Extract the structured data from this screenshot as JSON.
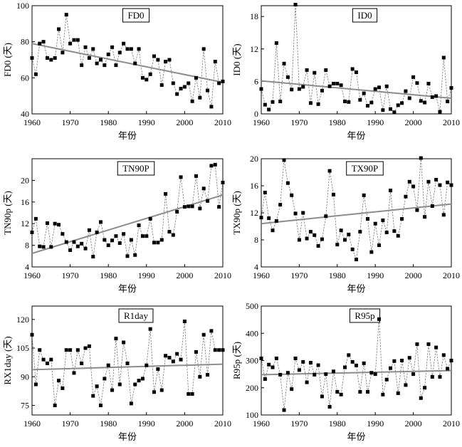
{
  "colors": {
    "series": "#7a7a7a",
    "trend": "#8c8c8c",
    "marker": "#000000",
    "axis": "#000000"
  },
  "chart_data": [
    {
      "type": "line",
      "title": "FD0",
      "ylabel": "FD0 (天)",
      "xlabel": "年份",
      "xlim": [
        1960,
        2010
      ],
      "xticks": [
        "1960",
        "1970",
        "1980",
        "1990",
        "2000",
        "2010"
      ],
      "ylim": [
        40,
        100
      ],
      "yticks": [
        "40",
        "60",
        "80",
        "100"
      ],
      "x": [
        1960,
        1961,
        1962,
        1963,
        1964,
        1965,
        1966,
        1967,
        1968,
        1969,
        1970,
        1971,
        1972,
        1973,
        1974,
        1975,
        1976,
        1977,
        1978,
        1979,
        1980,
        1981,
        1982,
        1983,
        1984,
        1985,
        1986,
        1987,
        1988,
        1989,
        1990,
        1991,
        1992,
        1993,
        1994,
        1995,
        1996,
        1997,
        1998,
        1999,
        2000,
        2001,
        2002,
        2003,
        2004,
        2005,
        2006,
        2007,
        2008,
        2009,
        2010
      ],
      "values": [
        71,
        62,
        79,
        80,
        71,
        70,
        71,
        87,
        74,
        95,
        79,
        81,
        81,
        67,
        77,
        71,
        76,
        68,
        70,
        67,
        73,
        77,
        67,
        74,
        79,
        76,
        76,
        68,
        76,
        60,
        59,
        62,
        72,
        70,
        56,
        69,
        70,
        57,
        51,
        54,
        55,
        57,
        47,
        60,
        49,
        76,
        53,
        44,
        69,
        57,
        58
      ],
      "trend": [
        79,
        57.5
      ]
    },
    {
      "type": "line",
      "title": "ID0",
      "ylabel": "ID0 (天)",
      "xlabel": "年份",
      "xlim": [
        1960,
        2010
      ],
      "xticks": [
        "1960",
        "1970",
        "1980",
        "1990",
        "2000",
        "2010"
      ],
      "ylim": [
        0,
        20
      ],
      "yticks": [
        "0",
        "6",
        "12",
        "18"
      ],
      "x": [
        1960,
        1961,
        1962,
        1963,
        1964,
        1965,
        1966,
        1967,
        1968,
        1969,
        1970,
        1971,
        1972,
        1973,
        1974,
        1975,
        1976,
        1977,
        1978,
        1979,
        1980,
        1981,
        1982,
        1983,
        1984,
        1985,
        1986,
        1987,
        1988,
        1989,
        1990,
        1991,
        1992,
        1993,
        1994,
        1995,
        1996,
        1997,
        1998,
        1999,
        2000,
        2001,
        2002,
        2003,
        2004,
        2005,
        2006,
        2007,
        2008,
        2009,
        2010
      ],
      "values": [
        4.6,
        1.7,
        0.8,
        2.2,
        13.1,
        2.3,
        9.3,
        6.8,
        4.5,
        20.2,
        4.6,
        5,
        8.1,
        2,
        7.6,
        1.8,
        4.3,
        8.1,
        5.1,
        5.6,
        5.6,
        5.3,
        2.3,
        2.2,
        8.3,
        7.7,
        2.6,
        3.8,
        1.5,
        2.1,
        4.6,
        4.9,
        0.7,
        5.1,
        0.9,
        0.3,
        1.6,
        2,
        4.2,
        2.9,
        6.8,
        5.7,
        2.4,
        2.1,
        5.6,
        3.1,
        3.3,
        0.4,
        10.4,
        2.3,
        4.8
      ],
      "trend": [
        6.1,
        2.9
      ]
    },
    {
      "type": "line",
      "title": "TN90P",
      "ylabel": "TN90p (天)",
      "xlabel": "年份",
      "xlim": [
        1960,
        2010
      ],
      "xticks": [
        "1960",
        "1970",
        "1980",
        "1990",
        "2000",
        "2010"
      ],
      "ylim": [
        4,
        24
      ],
      "yticks": [
        "4",
        "8",
        "12",
        "16",
        "20"
      ],
      "x": [
        1960,
        1961,
        1962,
        1963,
        1964,
        1965,
        1966,
        1967,
        1968,
        1969,
        1970,
        1971,
        1972,
        1973,
        1974,
        1975,
        1976,
        1977,
        1978,
        1979,
        1980,
        1981,
        1982,
        1983,
        1984,
        1985,
        1986,
        1987,
        1988,
        1989,
        1990,
        1991,
        1992,
        1993,
        1994,
        1995,
        1996,
        1997,
        1998,
        1999,
        2000,
        2001,
        2002,
        2003,
        2004,
        2005,
        2006,
        2007,
        2008,
        2009,
        2010
      ],
      "values": [
        10.4,
        12.9,
        7.8,
        7.7,
        12.1,
        7.7,
        12,
        11.8,
        10.1,
        8.6,
        7.1,
        8.6,
        7.8,
        8.3,
        7.4,
        10.8,
        5.9,
        10.4,
        12.3,
        9,
        8,
        8.9,
        9.7,
        8.4,
        10.1,
        6,
        9,
        6.2,
        11.7,
        9.7,
        9.7,
        12.9,
        8.5,
        8.5,
        9,
        17.5,
        10.5,
        9.9,
        14.2,
        20.6,
        15.1,
        15.2,
        15.2,
        20.8,
        14.8,
        18.5,
        16.2,
        22.7,
        22.9,
        15.1,
        19.6
      ],
      "trend": [
        6.5,
        17.3
      ]
    },
    {
      "type": "line",
      "title": "TX90P",
      "ylabel": "TX90p (天)",
      "xlabel": "年份",
      "xlim": [
        1960,
        2010
      ],
      "xticks": [
        "1960",
        "1970",
        "1980",
        "1990",
        "2000",
        "2010"
      ],
      "ylim": [
        4,
        20
      ],
      "yticks": [
        "4",
        "8",
        "12",
        "16",
        "20"
      ],
      "x": [
        1960,
        1961,
        1962,
        1963,
        1964,
        1965,
        1966,
        1967,
        1968,
        1969,
        1970,
        1971,
        1972,
        1973,
        1974,
        1975,
        1976,
        1977,
        1978,
        1979,
        1980,
        1981,
        1982,
        1983,
        1984,
        1985,
        1986,
        1987,
        1988,
        1989,
        1990,
        1991,
        1992,
        1993,
        1994,
        1995,
        1996,
        1997,
        1998,
        1999,
        2000,
        2001,
        2002,
        2003,
        2004,
        2005,
        2006,
        2007,
        2008,
        2009,
        2010
      ],
      "values": [
        11.3,
        15,
        11.2,
        9.4,
        10.8,
        13.2,
        19.8,
        16.4,
        14.6,
        11.9,
        8,
        12,
        8.2,
        9.2,
        8.7,
        7.1,
        8.1,
        11.5,
        18.2,
        14.7,
        7.3,
        9.4,
        8,
        8.8,
        6.6,
        5.1,
        9.2,
        14.6,
        11.1,
        6.2,
        10.4,
        7.2,
        10.9,
        9.1,
        15.3,
        9.3,
        8.6,
        11.1,
        14.4,
        16.6,
        15.9,
        12.4,
        20.1,
        11.4,
        16.6,
        13,
        16.9,
        16.1,
        11.7,
        16.5,
        16.1
      ],
      "trend": [
        10.4,
        13.3
      ]
    },
    {
      "type": "line",
      "title": "R1day",
      "ylabel": "RX1day (天)",
      "xlabel": "年份",
      "xlim": [
        1960,
        2010
      ],
      "xticks": [
        "1960",
        "1970",
        "1980",
        "1990",
        "2000",
        "2010"
      ],
      "ylim": [
        70,
        127
      ],
      "yticks": [
        "75",
        "90",
        "105",
        "120"
      ],
      "x": [
        1960,
        1961,
        1962,
        1963,
        1964,
        1965,
        1966,
        1967,
        1968,
        1969,
        1970,
        1971,
        1972,
        1973,
        1974,
        1975,
        1976,
        1977,
        1978,
        1979,
        1980,
        1981,
        1982,
        1983,
        1984,
        1985,
        1986,
        1987,
        1988,
        1989,
        1990,
        1991,
        1992,
        1993,
        1994,
        1995,
        1996,
        1997,
        1998,
        1999,
        2000,
        2001,
        2002,
        2003,
        2004,
        2005,
        2006,
        2007,
        2008,
        2009,
        2010
      ],
      "values": [
        112,
        86,
        104,
        99,
        97,
        99,
        75,
        88,
        84,
        104,
        104,
        92,
        104,
        97,
        105,
        106,
        80,
        85,
        75,
        89,
        96,
        83,
        110,
        86,
        108,
        97,
        76,
        86,
        88,
        89,
        96,
        115,
        82,
        94,
        83,
        101,
        100,
        98,
        102,
        99,
        119,
        81,
        81,
        103,
        90,
        112,
        91,
        114,
        104,
        104,
        104
      ],
      "trend": [
        93.7,
        96.6
      ]
    },
    {
      "type": "line",
      "title": "R95p",
      "ylabel": "R95p (天)",
      "xlabel": "年份",
      "xlim": [
        1960,
        2010
      ],
      "xticks": [
        "1960",
        "1970",
        "1980",
        "1990",
        "2000",
        "2010"
      ],
      "ylim": [
        100,
        500
      ],
      "yticks": [
        "100",
        "200",
        "300",
        "400",
        "500"
      ],
      "x": [
        1960,
        1961,
        1962,
        1963,
        1964,
        1965,
        1966,
        1967,
        1968,
        1969,
        1970,
        1971,
        1972,
        1973,
        1974,
        1975,
        1976,
        1977,
        1978,
        1979,
        1980,
        1981,
        1982,
        1983,
        1984,
        1985,
        1986,
        1987,
        1988,
        1989,
        1990,
        1991,
        1992,
        1993,
        1994,
        1995,
        1996,
        1997,
        1998,
        1999,
        2000,
        2001,
        2002,
        2003,
        2004,
        2005,
        2006,
        2007,
        2008,
        2009,
        2010
      ],
      "values": [
        308,
        232,
        285,
        275,
        308,
        248,
        118,
        255,
        195,
        308,
        265,
        295,
        220,
        292,
        248,
        283,
        168,
        250,
        130,
        260,
        185,
        175,
        275,
        320,
        295,
        282,
        185,
        290,
        185,
        255,
        250,
        452,
        175,
        230,
        272,
        298,
        180,
        300,
        210,
        310,
        250,
        360,
        162,
        200,
        360,
        240,
        348,
        240,
        320,
        270,
        300
      ],
      "trend": [
        248,
        263
      ]
    }
  ]
}
